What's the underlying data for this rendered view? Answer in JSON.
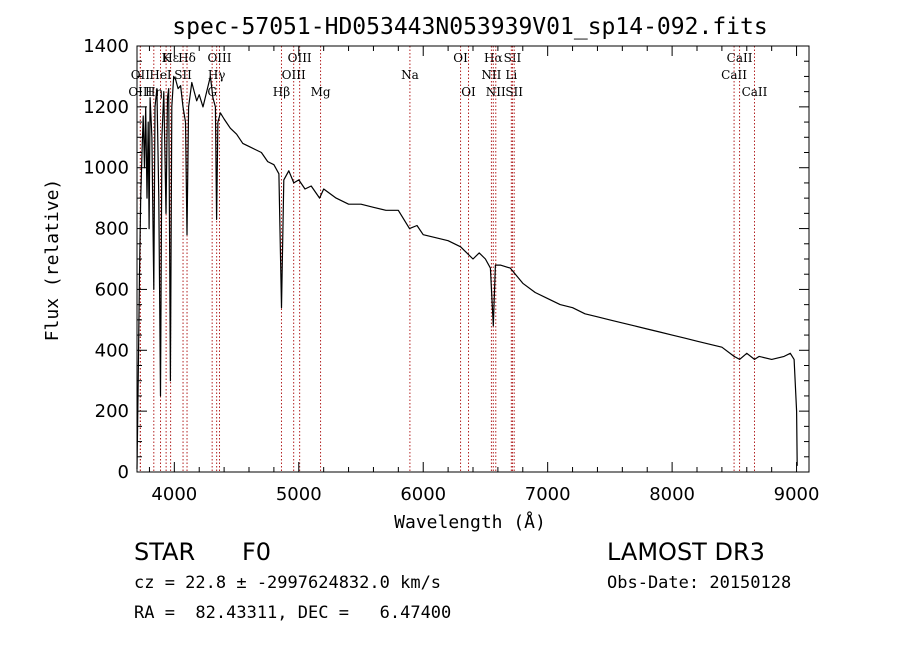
{
  "chart_data": {
    "type": "line",
    "title": "spec-57051-HD053443N053939V01_sp14-092.fits",
    "xlabel": "Wavelength (Å)",
    "ylabel": "Flux (relative)",
    "xlim": [
      3700,
      9100
    ],
    "ylim": [
      0,
      1400
    ],
    "x_ticks": [
      4000,
      5000,
      6000,
      7000,
      8000,
      9000
    ],
    "y_ticks": [
      0,
      200,
      400,
      600,
      800,
      1000,
      1200,
      1400
    ],
    "series": [
      {
        "name": "flux",
        "points": [
          [
            3700,
            10
          ],
          [
            3710,
            300
          ],
          [
            3720,
            650
          ],
          [
            3730,
            900
          ],
          [
            3740,
            1050
          ],
          [
            3750,
            1170
          ],
          [
            3760,
            1000
          ],
          [
            3770,
            1200
          ],
          [
            3780,
            900
          ],
          [
            3790,
            1150
          ],
          [
            3797,
            800
          ],
          [
            3805,
            1230
          ],
          [
            3820,
            1100
          ],
          [
            3835,
            600
          ],
          [
            3845,
            1200
          ],
          [
            3860,
            1260
          ],
          [
            3875,
            900
          ],
          [
            3889,
            250
          ],
          [
            3900,
            1100
          ],
          [
            3915,
            1250
          ],
          [
            3933,
            850
          ],
          [
            3945,
            1230
          ],
          [
            3955,
            1260
          ],
          [
            3968,
            300
          ],
          [
            3980,
            1200
          ],
          [
            3995,
            1300
          ],
          [
            4010,
            1290
          ],
          [
            4030,
            1260
          ],
          [
            4050,
            1270
          ],
          [
            4070,
            1200
          ],
          [
            4090,
            1150
          ],
          [
            4102,
            780
          ],
          [
            4115,
            1200
          ],
          [
            4140,
            1280
          ],
          [
            4160,
            1250
          ],
          [
            4180,
            1220
          ],
          [
            4200,
            1240
          ],
          [
            4230,
            1200
          ],
          [
            4260,
            1250
          ],
          [
            4290,
            1300
          ],
          [
            4310,
            1230
          ],
          [
            4330,
            1200
          ],
          [
            4340,
            830
          ],
          [
            4350,
            1150
          ],
          [
            4370,
            1180
          ],
          [
            4400,
            1160
          ],
          [
            4450,
            1130
          ],
          [
            4500,
            1110
          ],
          [
            4550,
            1080
          ],
          [
            4600,
            1070
          ],
          [
            4650,
            1060
          ],
          [
            4700,
            1050
          ],
          [
            4750,
            1020
          ],
          [
            4800,
            1010
          ],
          [
            4840,
            980
          ],
          [
            4861,
            540
          ],
          [
            4880,
            960
          ],
          [
            4920,
            990
          ],
          [
            4960,
            950
          ],
          [
            5000,
            960
          ],
          [
            5050,
            930
          ],
          [
            5100,
            940
          ],
          [
            5167,
            900
          ],
          [
            5200,
            930
          ],
          [
            5300,
            900
          ],
          [
            5400,
            880
          ],
          [
            5500,
            880
          ],
          [
            5600,
            870
          ],
          [
            5700,
            860
          ],
          [
            5800,
            860
          ],
          [
            5890,
            800
          ],
          [
            5950,
            810
          ],
          [
            6000,
            780
          ],
          [
            6100,
            770
          ],
          [
            6200,
            760
          ],
          [
            6300,
            740
          ],
          [
            6400,
            700
          ],
          [
            6450,
            720
          ],
          [
            6500,
            700
          ],
          [
            6540,
            670
          ],
          [
            6563,
            480
          ],
          [
            6580,
            680
          ],
          [
            6620,
            680
          ],
          [
            6700,
            670
          ],
          [
            6800,
            620
          ],
          [
            6900,
            590
          ],
          [
            7000,
            570
          ],
          [
            7100,
            550
          ],
          [
            7200,
            540
          ],
          [
            7300,
            520
          ],
          [
            7400,
            510
          ],
          [
            7500,
            500
          ],
          [
            7600,
            490
          ],
          [
            7700,
            480
          ],
          [
            7800,
            470
          ],
          [
            7900,
            460
          ],
          [
            8000,
            450
          ],
          [
            8100,
            440
          ],
          [
            8200,
            430
          ],
          [
            8300,
            420
          ],
          [
            8400,
            410
          ],
          [
            8498,
            380
          ],
          [
            8542,
            370
          ],
          [
            8600,
            390
          ],
          [
            8662,
            370
          ],
          [
            8700,
            380
          ],
          [
            8800,
            370
          ],
          [
            8900,
            380
          ],
          [
            8950,
            390
          ],
          [
            8980,
            370
          ],
          [
            9000,
            200
          ],
          [
            9005,
            20
          ]
        ]
      }
    ],
    "line_markers": [
      {
        "name": "Hε",
        "wavelength": 3970,
        "row": 1
      },
      {
        "name": "K",
        "wavelength": 3934,
        "row": 1
      },
      {
        "name": "Hδ",
        "wavelength": 4102,
        "row": 1
      },
      {
        "name": "OIII",
        "wavelength": 4363,
        "row": 1
      },
      {
        "name": "OIII",
        "wavelength": 5007,
        "row": 1
      },
      {
        "name": "OI",
        "wavelength": 6300,
        "row": 1
      },
      {
        "name": "Hα",
        "wavelength": 6563,
        "row": 1
      },
      {
        "name": "SII",
        "wavelength": 6717,
        "row": 1
      },
      {
        "name": "CaII",
        "wavelength": 8542,
        "row": 1
      },
      {
        "name": "OII",
        "wavelength": 3727,
        "row": 2
      },
      {
        "name": "HeI",
        "wavelength": 3889,
        "row": 2
      },
      {
        "name": "SII",
        "wavelength": 4070,
        "row": 2
      },
      {
        "name": "Hγ",
        "wavelength": 4340,
        "row": 2
      },
      {
        "name": "OIII",
        "wavelength": 4959,
        "row": 2
      },
      {
        "name": "Na",
        "wavelength": 5893,
        "row": 2
      },
      {
        "name": "NII",
        "wavelength": 6548,
        "row": 2
      },
      {
        "name": "Li",
        "wavelength": 6708,
        "row": 2
      },
      {
        "name": "CaII",
        "wavelength": 8498,
        "row": 2
      },
      {
        "name": "OIII",
        "wavelength": 3727,
        "row": 3
      },
      {
        "name": "Hη",
        "wavelength": 3835,
        "row": 3
      },
      {
        "name": "G",
        "wavelength": 4304,
        "row": 3
      },
      {
        "name": "Hβ",
        "wavelength": 4861,
        "row": 3
      },
      {
        "name": "Mg",
        "wavelength": 5175,
        "row": 3
      },
      {
        "name": "OI",
        "wavelength": 6364,
        "row": 3
      },
      {
        "name": "NII",
        "wavelength": 6583,
        "row": 3
      },
      {
        "name": "SII",
        "wavelength": 6731,
        "row": 3
      },
      {
        "name": "CaII",
        "wavelength": 8662,
        "row": 3
      }
    ],
    "marker_color": "#b22222"
  },
  "info": {
    "object_type": "STAR",
    "subclass": "F0",
    "survey": "LAMOST DR3",
    "cz": "cz = 22.8 ± -2997624832.0 km/s",
    "obs_date": "Obs-Date: 20150128",
    "coords": "RA =  82.43311, DEC =   6.47400"
  }
}
